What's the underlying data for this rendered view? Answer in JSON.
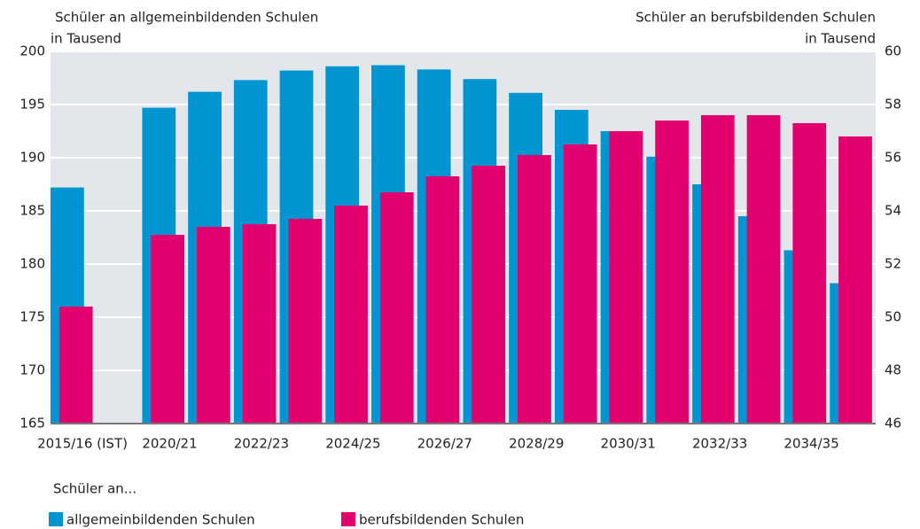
{
  "chart_data": {
    "type": "bar",
    "y_label": [
      "Schüler an allgemeinbildenden Schulen",
      "in Tausend"
    ],
    "y2_label": [
      "Schüler an berufsbildenden Schulen",
      "in Tausend"
    ],
    "categories": [
      "2015/16 (IST)",
      null,
      "2020/21",
      null,
      "2022/23",
      null,
      "2024/25",
      null,
      "2026/27",
      null,
      "2028/29",
      null,
      "2030/31",
      null,
      "2032/33",
      null,
      "2034/35",
      null
    ],
    "series": [
      {
        "name": "allgemeinbildenden Schulen",
        "color": "#0095d0",
        "axis": "y",
        "values": [
          187.2,
          null,
          194.7,
          196.2,
          197.3,
          198.2,
          198.6,
          198.7,
          198.3,
          197.4,
          196.1,
          194.5,
          192.5,
          190.1,
          187.5,
          184.5,
          181.3,
          178.2
        ]
      },
      {
        "name": "berufsbildenden Schulen",
        "color": "#e2006f",
        "axis": "y2",
        "values": [
          50.4,
          null,
          53.1,
          53.4,
          53.5,
          53.7,
          54.2,
          54.7,
          55.3,
          55.7,
          56.1,
          56.5,
          57.0,
          57.4,
          57.6,
          57.6,
          57.3,
          56.8
        ]
      }
    ],
    "ylim": [
      165,
      200
    ],
    "yticks": [
      165,
      170,
      175,
      180,
      185,
      190,
      195,
      200
    ],
    "y2lim": [
      46,
      60
    ],
    "y2ticks": [
      46,
      48,
      50,
      52,
      54,
      56,
      58,
      60
    ],
    "grid": true,
    "legend_title": "Schüler an..."
  }
}
